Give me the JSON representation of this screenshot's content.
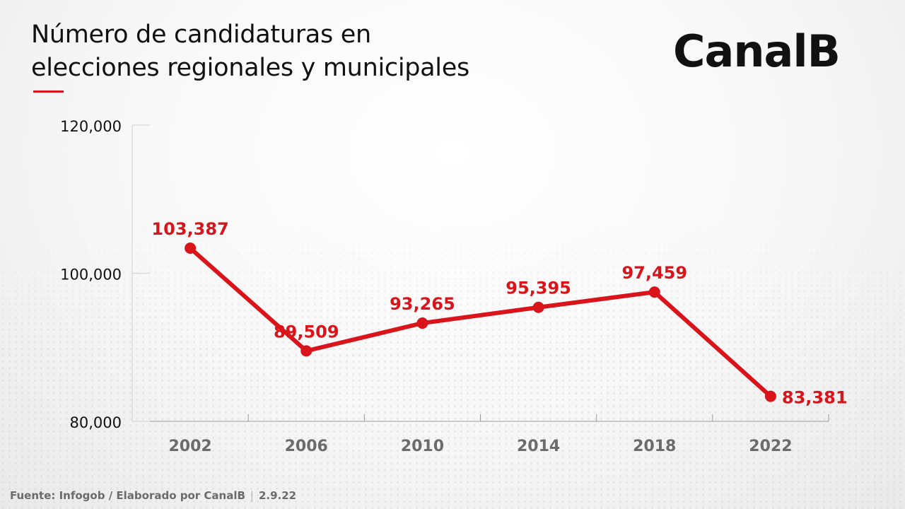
{
  "title_line1": "Número de candidaturas en",
  "title_line2": "elecciones regionales y municipales",
  "brand": "CanalB",
  "footer": {
    "source": "Fuente: Infogob / Elaborado por CanalB",
    "separator": "|",
    "date": "2.9.22"
  },
  "colors": {
    "series": "#d9151b",
    "accent": "#d9151b",
    "ticks": "#6b6b6b",
    "axis_labels": "#111111"
  },
  "chart_data": {
    "type": "line",
    "categories": [
      "2002",
      "2006",
      "2010",
      "2014",
      "2018",
      "2022"
    ],
    "series": [
      {
        "values": [
          103387,
          89509,
          93265,
          95395,
          97459,
          83381
        ],
        "labels": [
          "103,387",
          "89,509",
          "93,265",
          "95,395",
          "97,459",
          "83,381"
        ]
      }
    ],
    "y_ticks": [
      80000,
      100000,
      120000
    ],
    "y_tick_labels": [
      "80,000",
      "100,000",
      "120,000"
    ],
    "ylim": [
      80000,
      120000
    ],
    "grid": false,
    "legend": "none"
  }
}
